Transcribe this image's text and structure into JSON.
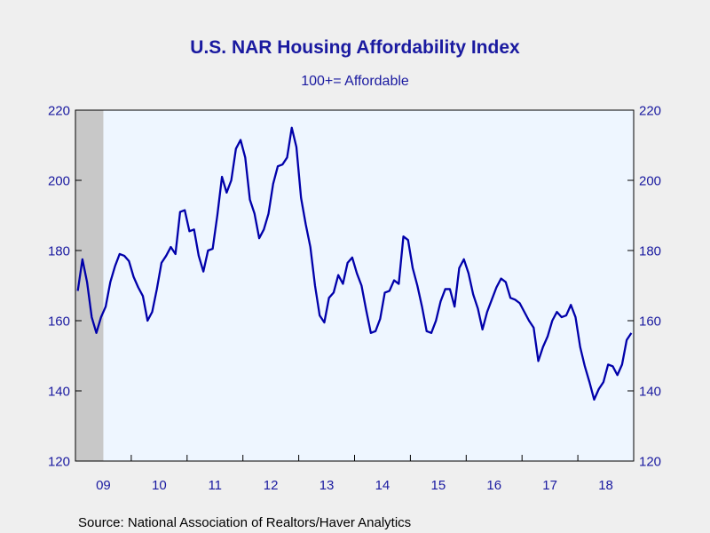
{
  "chart_data": {
    "type": "line",
    "title": "U.S. NAR Housing Affordability Index",
    "subtitle": "100+= Affordable",
    "source": "Source:  National Association of Realtors/Haver Analytics",
    "ylim": [
      120,
      220
    ],
    "y_ticks": [
      "120",
      "140",
      "160",
      "180",
      "200",
      "220"
    ],
    "x_year_labels": [
      "09",
      "10",
      "11",
      "12",
      "13",
      "14",
      "15",
      "16",
      "17",
      "18"
    ],
    "x_start": "2009-01",
    "recession_shading": {
      "start": "2009-01",
      "end": "2009-06"
    },
    "grid": false,
    "legend": "none",
    "series": [
      {
        "values": [
          168.5,
          177.5,
          171,
          161,
          156.5,
          161,
          164,
          171,
          175.5,
          179,
          178.5,
          177,
          172.5,
          169.5,
          167,
          160,
          162.5,
          169,
          176.5,
          178.5,
          181,
          179,
          191,
          191.5,
          185.5,
          186,
          178.5,
          174,
          180,
          180.5,
          190,
          201,
          196.5,
          200,
          209,
          211.5,
          206.5,
          194.5,
          190.5,
          183.5,
          186,
          190.5,
          199,
          204,
          204.5,
          206.5,
          215,
          209.5,
          195,
          187.5,
          181,
          170,
          161.5,
          159.5,
          166.5,
          168,
          173,
          170.5,
          176.5,
          178,
          173.5,
          170,
          163,
          156.5,
          157,
          160.5,
          168,
          168.5,
          171.5,
          170.5,
          184,
          183,
          175,
          170,
          164,
          157,
          156.5,
          160,
          165.5,
          169,
          169,
          164,
          175,
          177.5,
          173.5,
          167.5,
          163.5,
          157.5,
          162.5,
          166,
          169.5,
          172,
          171,
          166.5,
          166,
          165,
          162.5,
          160,
          158,
          148.5,
          152.5,
          155.5,
          160,
          162.5,
          161,
          161.5,
          164.5,
          161,
          152.5,
          147,
          142.5,
          137.5,
          140.5,
          142.5,
          147.5,
          147,
          144.5,
          147.5,
          154.5,
          156.5
        ]
      }
    ]
  },
  "colors": {
    "line": "#0000aa",
    "text": "#1a1aa0",
    "plot_bg": "#eef6ff",
    "recession": "#c8c8c8",
    "frame": "#000000"
  }
}
